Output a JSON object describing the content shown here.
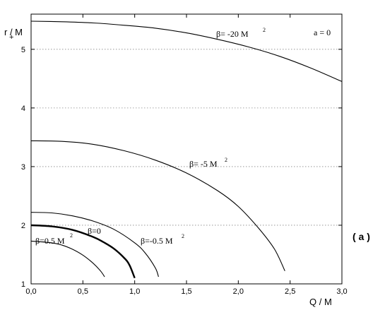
{
  "chart_data": {
    "type": "line",
    "title": "",
    "xlabel": "Q / M",
    "ylabel": "r  / M",
    "ylabel_subscript": "+",
    "xlim": [
      0,
      3
    ],
    "ylim": [
      1,
      5.6
    ],
    "x_ticks": [
      "0,0",
      "0,5",
      "1,0",
      "1,5",
      "2,0",
      "2,5",
      "3,0"
    ],
    "y_ticks": [
      "1",
      "2",
      "3",
      "4",
      "5"
    ],
    "grid": "horizontal dotted",
    "legend": "none",
    "panel_label": "( a )",
    "param_label": "a = 0",
    "series": [
      {
        "label": "β= -20 M",
        "label_sup": "2",
        "bold": false,
        "x": [
          0,
          0.3,
          0.6,
          0.9,
          1.2,
          1.5,
          1.8,
          2.1,
          2.4,
          2.7,
          3.0
        ],
        "y": [
          5.48,
          5.47,
          5.45,
          5.41,
          5.36,
          5.28,
          5.17,
          5.04,
          4.88,
          4.68,
          4.45
        ]
      },
      {
        "label": "β= -5 M",
        "label_sup": "2",
        "bold": false,
        "x": [
          0,
          0.3,
          0.6,
          0.9,
          1.2,
          1.5,
          1.8,
          2.0,
          2.2,
          2.35,
          2.45
        ],
        "y": [
          3.44,
          3.43,
          3.38,
          3.27,
          3.11,
          2.89,
          2.59,
          2.32,
          1.94,
          1.59,
          1.22
        ]
      },
      {
        "label": "β=-0.5 M",
        "label_sup": "2",
        "bold": false,
        "x": [
          0,
          0.2,
          0.4,
          0.6,
          0.8,
          1.0,
          1.1,
          1.2,
          1.23
        ],
        "y": [
          2.22,
          2.21,
          2.16,
          2.07,
          1.93,
          1.7,
          1.53,
          1.27,
          1.12
        ]
      },
      {
        "label": "β=0",
        "label_sup": "",
        "bold": true,
        "x": [
          0,
          0.2,
          0.4,
          0.6,
          0.7,
          0.8,
          0.9,
          0.95,
          1.0
        ],
        "y": [
          2.0,
          1.98,
          1.92,
          1.8,
          1.71,
          1.6,
          1.44,
          1.32,
          1.1
        ]
      },
      {
        "label": "β=0.5 M",
        "label_sup": "2",
        "bold": false,
        "x": [
          0,
          0.2,
          0.3,
          0.4,
          0.5,
          0.6,
          0.67,
          0.71
        ],
        "y": [
          1.73,
          1.7,
          1.66,
          1.59,
          1.49,
          1.35,
          1.22,
          1.12
        ]
      }
    ]
  }
}
